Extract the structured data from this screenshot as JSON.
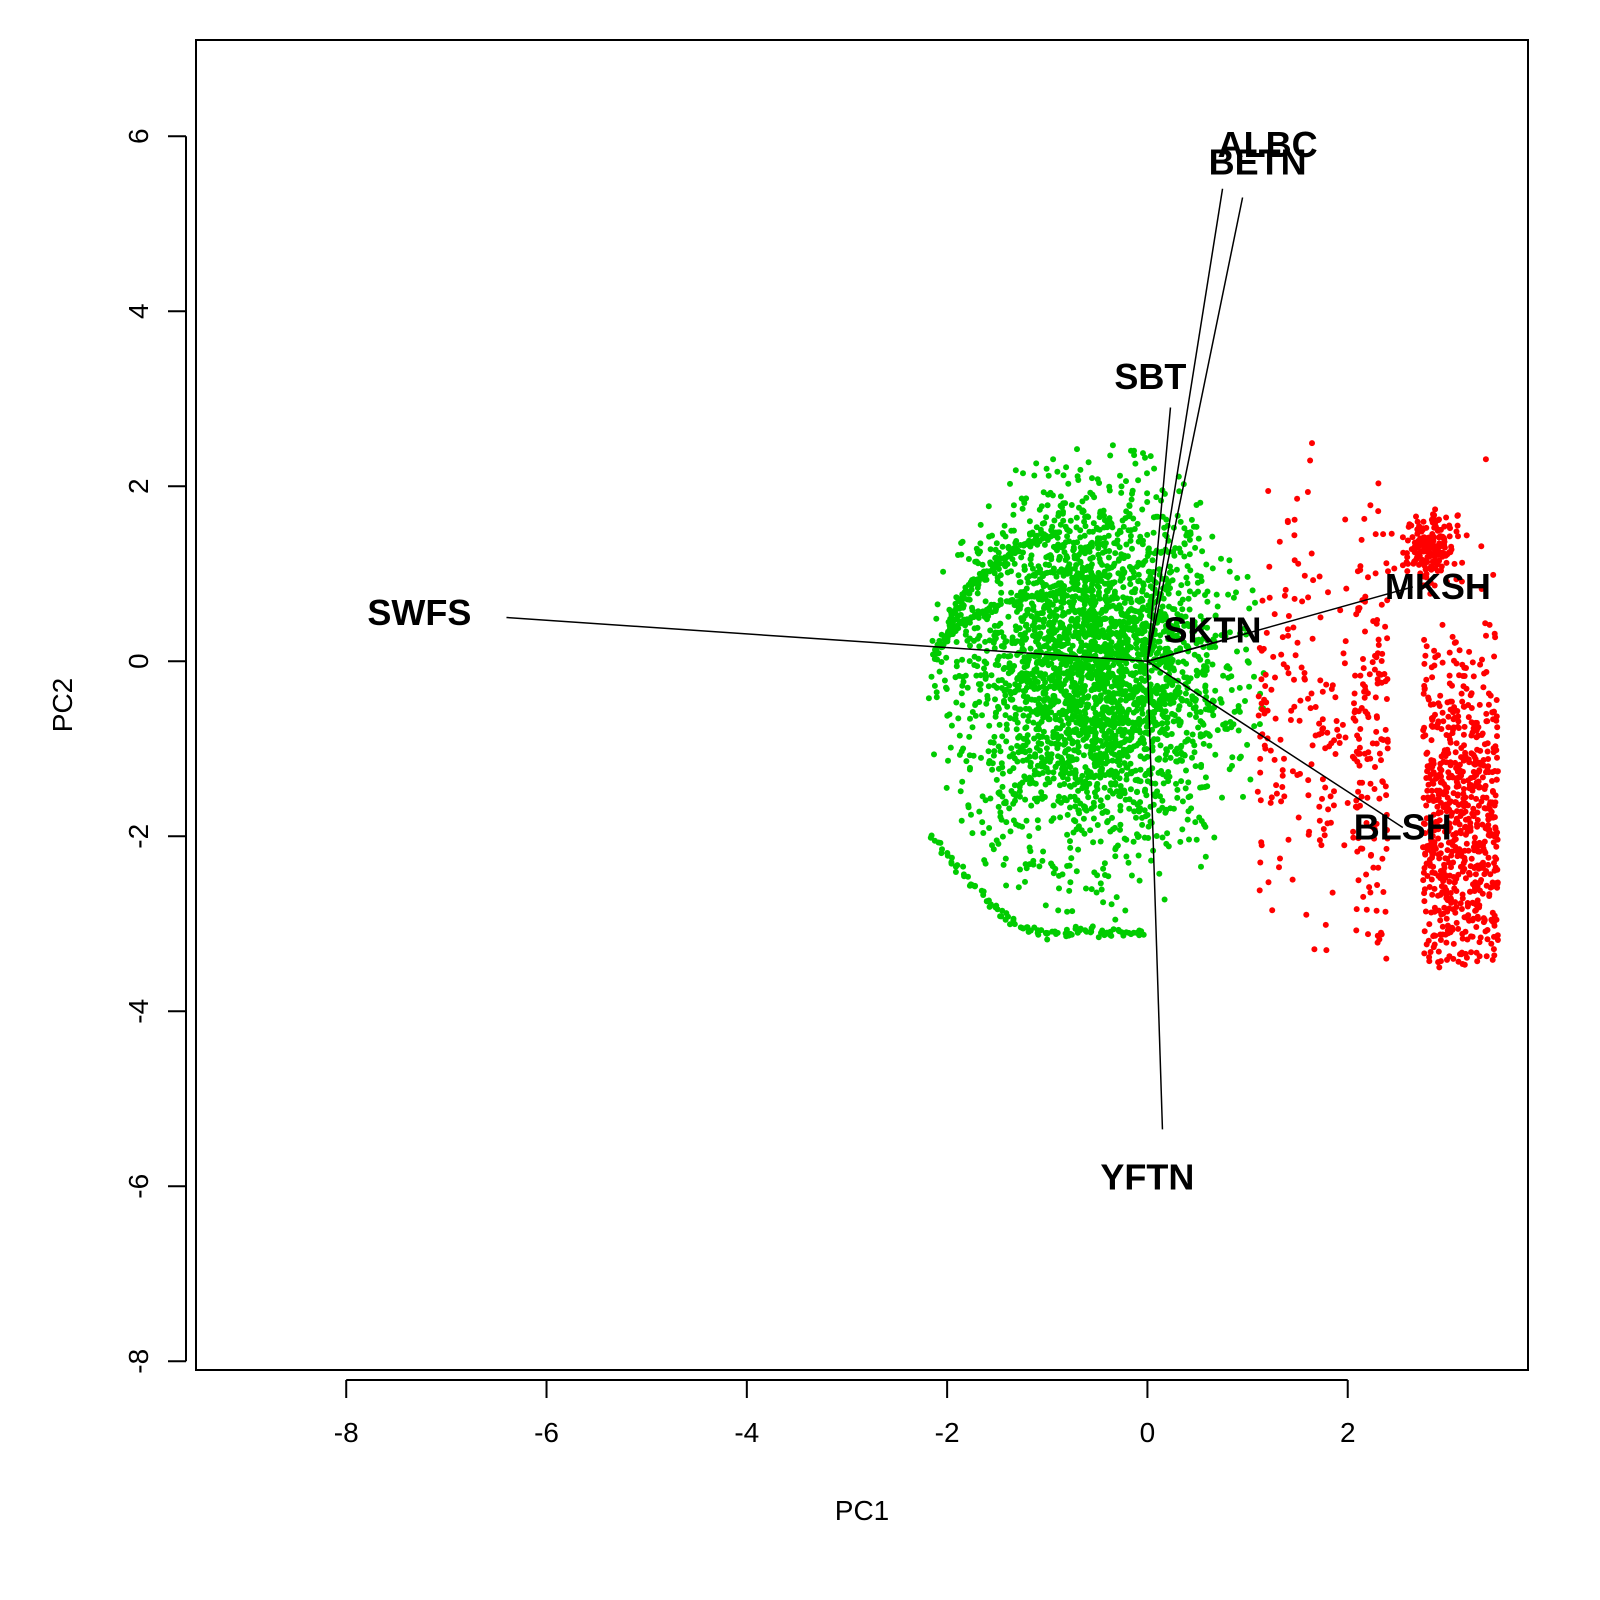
{
  "chart_data": {
    "type": "scatter",
    "subtype": "biplot",
    "xlabel": "PC1",
    "ylabel": "PC2",
    "xlim": [
      -9.5,
      3.8
    ],
    "ylim": [
      -8.1,
      7.1
    ],
    "x_ticks": [
      -8,
      -6,
      -4,
      -2,
      0,
      2
    ],
    "y_ticks": [
      -8,
      -6,
      -4,
      -2,
      0,
      2,
      4,
      6
    ],
    "grid": false,
    "colors": {
      "group1": "#00cc00",
      "group2": "#ff0000",
      "axis": "#000000"
    },
    "series": [
      {
        "color": "#00cc00",
        "cloud": {
          "x_range": [
            -2.2,
            1.2
          ],
          "y_range": [
            -3.1,
            2.6
          ],
          "approx_points": 3000
        }
      },
      {
        "color": "#ff0000",
        "cloud": {
          "x_range": [
            1.0,
            3.6
          ],
          "y_range": [
            -3.5,
            2.5
          ],
          "approx_points": 1300
        }
      }
    ],
    "loadings": [
      {
        "label": "ALBC",
        "x": 0.75,
        "y": 5.4
      },
      {
        "label": "BETN",
        "x": 0.95,
        "y": 5.3
      },
      {
        "label": "SBT",
        "x": 0.23,
        "y": 2.9
      },
      {
        "label": "SWFS",
        "x": -6.4,
        "y": 0.5
      },
      {
        "label": "SKTN",
        "x": 0.95,
        "y": 0.3
      },
      {
        "label": "MKSH",
        "x": 2.65,
        "y": 0.85
      },
      {
        "label": "BLSH",
        "x": 2.55,
        "y": -1.9
      },
      {
        "label": "YFTN",
        "x": 0.15,
        "y": -5.35
      }
    ]
  }
}
